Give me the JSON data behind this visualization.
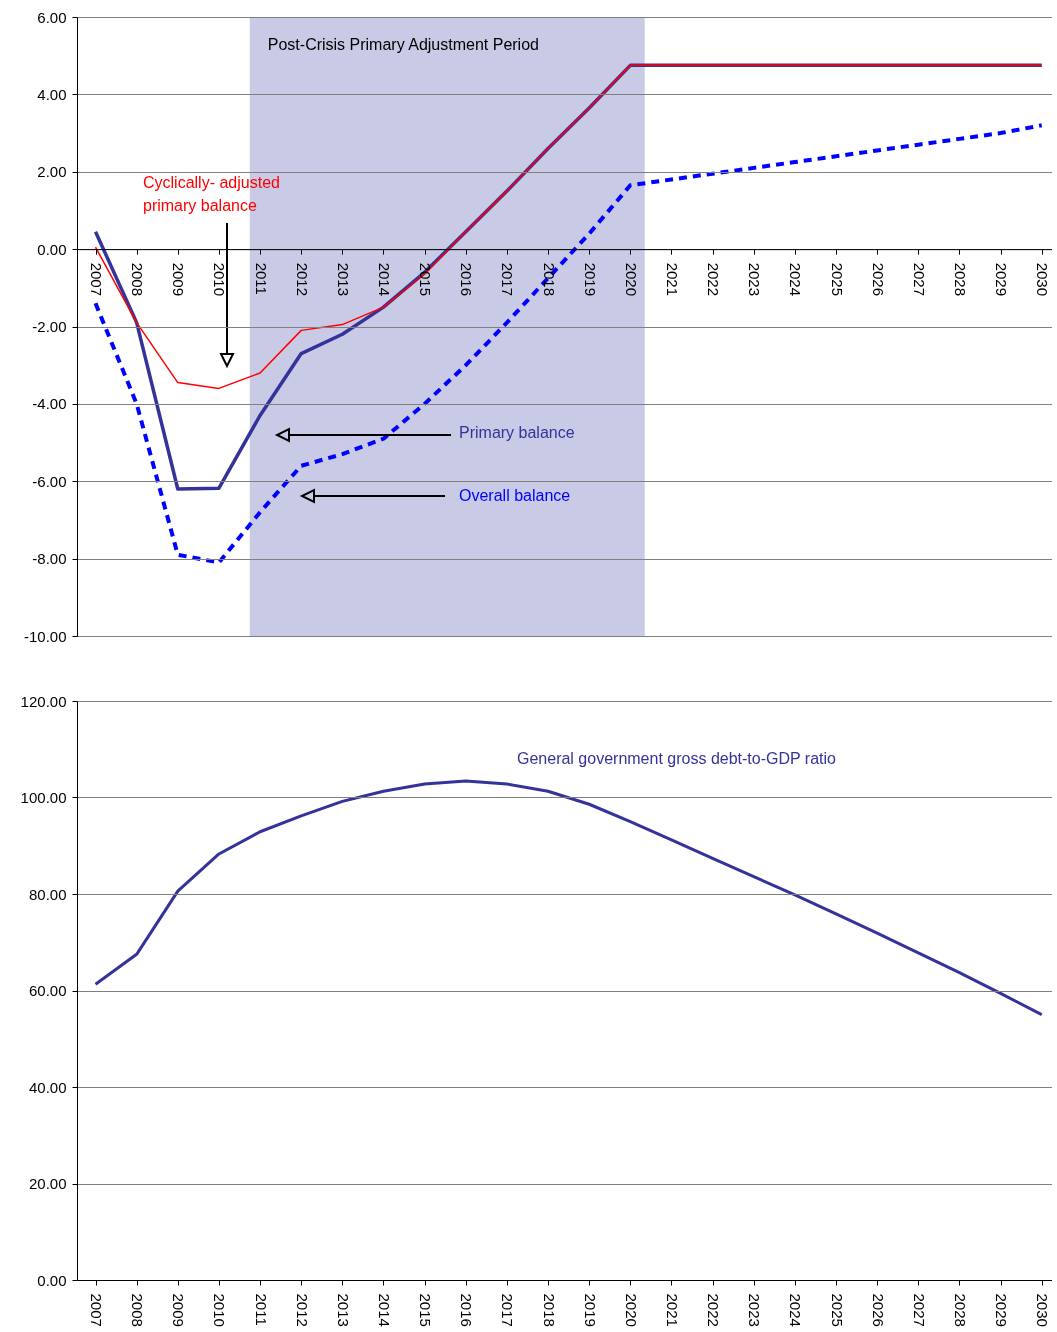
{
  "chart_data": [
    {
      "type": "line",
      "x": [
        2007,
        2008,
        2009,
        2010,
        2011,
        2012,
        2013,
        2014,
        2015,
        2016,
        2017,
        2018,
        2019,
        2020,
        2021,
        2022,
        2023,
        2024,
        2025,
        2026,
        2027,
        2028,
        2029,
        2030
      ],
      "series": [
        {
          "name": "Primary balance",
          "color": "#333399",
          "line_style": "solid",
          "values": [
            0.45,
            -1.9,
            -6.2,
            -6.18,
            -4.3,
            -2.7,
            -2.2,
            -1.5,
            -0.6,
            0.45,
            1.5,
            2.6,
            3.65,
            4.75,
            4.75,
            4.75,
            4.75,
            4.75,
            4.75,
            4.75,
            4.75,
            4.75,
            4.75,
            4.75
          ]
        },
        {
          "name": "Cyclically- adjusted primary balance",
          "color": "#ff0000",
          "line_style": "solid",
          "values": [
            0.05,
            -1.9,
            -3.45,
            -3.6,
            -3.2,
            -2.1,
            -1.95,
            -1.5,
            -0.65,
            0.45,
            1.5,
            2.6,
            3.65,
            4.75,
            4.75,
            4.75,
            4.75,
            4.75,
            4.75,
            4.75,
            4.75,
            4.75,
            4.75,
            4.75
          ]
        },
        {
          "name": "Overall balance",
          "color": "#0000ff",
          "line_style": "dashed",
          "values": [
            -1.4,
            -4.0,
            -7.9,
            -8.1,
            -6.8,
            -5.6,
            -5.3,
            -4.9,
            -4.0,
            -3.0,
            -1.9,
            -0.75,
            0.4,
            1.65,
            1.8,
            1.95,
            2.1,
            2.25,
            2.4,
            2.55,
            2.7,
            2.85,
            3.0,
            3.2
          ]
        }
      ],
      "xlim": [
        2006.55,
        2030.25
      ],
      "xticks": [
        2007,
        2008,
        2009,
        2010,
        2011,
        2012,
        2013,
        2014,
        2015,
        2016,
        2017,
        2018,
        2019,
        2020,
        2021,
        2022,
        2023,
        2024,
        2025,
        2026,
        2027,
        2028,
        2029,
        2030
      ],
      "ylim": [
        -10,
        6
      ],
      "yticks": [
        {
          "value": -10,
          "label": "-10.00"
        },
        {
          "value": -8,
          "label": "-8.00"
        },
        {
          "value": -6,
          "label": "-6.00"
        },
        {
          "value": -4,
          "label": "-4.00"
        },
        {
          "value": -2,
          "label": "-2.00"
        },
        {
          "value": 0,
          "label": "0.00"
        },
        {
          "value": 2,
          "label": "2.00"
        },
        {
          "value": 4,
          "label": "4.00"
        },
        {
          "value": 6,
          "label": "6.00"
        }
      ],
      "bands": [
        {
          "axis": "x",
          "from": 2010.75,
          "to": 2020.35,
          "label": "Post-Crisis Primary Adjustment Period",
          "color": "#c9cae6"
        }
      ],
      "grid": "y",
      "marker": "none"
    },
    {
      "type": "line",
      "x": [
        2007,
        2008,
        2009,
        2010,
        2011,
        2012,
        2013,
        2014,
        2015,
        2016,
        2017,
        2018,
        2019,
        2020,
        2021,
        2022,
        2023,
        2024,
        2025,
        2026,
        2027,
        2028,
        2029,
        2030
      ],
      "series": [
        {
          "name": "General government gross debt-to-GDP ratio",
          "color": "#333399",
          "line_style": "solid",
          "values": [
            61.3,
            67.5,
            80.6,
            88.3,
            92.9,
            96.2,
            99.2,
            101.3,
            102.8,
            103.4,
            102.8,
            101.3,
            98.6,
            95.0,
            91.2,
            87.4,
            83.6,
            79.8,
            75.9,
            71.9,
            67.8,
            63.7,
            59.4,
            55.0
          ]
        }
      ],
      "xlim": [
        2006.55,
        2030.25
      ],
      "xticks": [
        2007,
        2008,
        2009,
        2010,
        2011,
        2012,
        2013,
        2014,
        2015,
        2016,
        2017,
        2018,
        2019,
        2020,
        2021,
        2022,
        2023,
        2024,
        2025,
        2026,
        2027,
        2028,
        2029,
        2030
      ],
      "ylim": [
        0,
        120
      ],
      "yticks": [
        {
          "value": 0,
          "label": "0.00"
        },
        {
          "value": 20,
          "label": "20.00"
        },
        {
          "value": 40,
          "label": "40.00"
        },
        {
          "value": 60,
          "label": "60.00"
        },
        {
          "value": 80,
          "label": "80.00"
        },
        {
          "value": 100,
          "label": "100.00"
        },
        {
          "value": 120,
          "label": "120.00"
        }
      ],
      "grid": "y",
      "marker": "none"
    }
  ]
}
